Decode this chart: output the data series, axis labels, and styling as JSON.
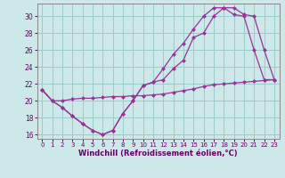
{
  "bg_color": "#cce8e8",
  "line_color": "#993399",
  "grid_color": "#99cccc",
  "xlabel": "Windchill (Refroidissement éolien,°C)",
  "xlabel_color": "#660066",
  "tick_color": "#660066",
  "xlim": [
    -0.5,
    23.5
  ],
  "ylim": [
    15.5,
    31.5
  ],
  "yticks": [
    16,
    18,
    20,
    22,
    24,
    26,
    28,
    30
  ],
  "xticks": [
    0,
    1,
    2,
    3,
    4,
    5,
    6,
    7,
    8,
    9,
    10,
    11,
    12,
    13,
    14,
    15,
    16,
    17,
    18,
    19,
    20,
    21,
    22,
    23
  ],
  "line1_x": [
    0,
    1,
    2,
    3,
    4,
    5,
    6,
    7,
    8,
    9,
    10,
    11,
    12,
    13,
    14,
    15,
    16,
    17,
    18,
    19,
    20,
    21,
    22,
    23
  ],
  "line1_y": [
    21.3,
    20.0,
    19.2,
    18.2,
    17.3,
    16.5,
    16.0,
    16.5,
    18.5,
    20.0,
    21.8,
    22.2,
    22.5,
    23.8,
    24.8,
    27.5,
    28.0,
    30.0,
    31.0,
    31.0,
    30.2,
    30.0,
    26.0,
    22.5
  ],
  "line2_x": [
    0,
    1,
    2,
    3,
    4,
    5,
    6,
    7,
    8,
    9,
    10,
    11,
    12,
    13,
    14,
    15,
    16,
    17,
    18,
    19,
    20,
    21,
    22,
    23
  ],
  "line2_y": [
    21.3,
    20.0,
    19.2,
    18.2,
    17.3,
    16.5,
    16.0,
    16.5,
    18.5,
    20.0,
    21.8,
    22.2,
    23.8,
    25.5,
    26.8,
    28.5,
    30.0,
    31.0,
    31.0,
    30.2,
    30.0,
    26.0,
    22.5,
    22.5
  ],
  "line3_x": [
    0,
    1,
    2,
    3,
    4,
    5,
    6,
    7,
    8,
    9,
    10,
    11,
    12,
    13,
    14,
    15,
    16,
    17,
    18,
    19,
    20,
    21,
    22,
    23
  ],
  "line3_y": [
    21.3,
    20.0,
    20.0,
    20.2,
    20.3,
    20.3,
    20.4,
    20.5,
    20.5,
    20.6,
    20.6,
    20.7,
    20.8,
    21.0,
    21.2,
    21.4,
    21.7,
    21.9,
    22.0,
    22.1,
    22.2,
    22.3,
    22.4,
    22.5
  ],
  "marker": "D",
  "markersize": 2.5,
  "linewidth": 0.9
}
